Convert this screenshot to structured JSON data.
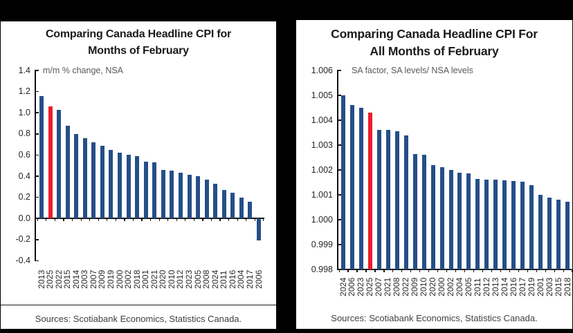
{
  "panels": {
    "left": {
      "title_line1": "Comparing Canada Headline CPI for",
      "title_line2": "Months of February",
      "axis_note": "m/m % change, NSA",
      "sources": "Sources: Scotiabank Economics, Statistics Canada."
    },
    "right": {
      "title_line1": "Comparing Canada Headline CPI For",
      "title_line2": "All Months of February",
      "axis_note": "SA factor, SA levels/ NSA levels",
      "sources": "Sources: Scotiabank Economics, Statistics Canada."
    }
  },
  "colors": {
    "bar_blue": "#254f87",
    "highlight_red": "#ec1c2d",
    "axis_black": "#111111",
    "background_black": "#000000",
    "panel_white": "#ffffff"
  },
  "chart_data": [
    {
      "type": "bar",
      "title": "Comparing Canada Headline CPI for Months of February",
      "note": "m/m % change, NSA",
      "xlabel": "",
      "ylabel": "m/m % change, NSA",
      "ylim": [
        -0.4,
        1.4
      ],
      "ytick_step": 0.2,
      "ytick_labels": [
        "1.4",
        "1.2",
        "1.0",
        "0.8",
        "0.6",
        "0.4",
        "0.2",
        "0.0",
        "-0.2",
        "-0.4"
      ],
      "baseline": 0,
      "grid": false,
      "legend": false,
      "highlight_index": 1,
      "highlight_category": "2025",
      "categories": [
        "2013",
        "2025",
        "2022",
        "2015",
        "2014",
        "2003",
        "2007",
        "2009",
        "2019",
        "2000",
        "2002",
        "2018",
        "2001",
        "2021",
        "2020",
        "2010",
        "2012",
        "2023",
        "2005",
        "2008",
        "2024",
        "2011",
        "2016",
        "2004",
        "2017",
        "2006"
      ],
      "values": [
        1.16,
        1.06,
        1.03,
        0.88,
        0.8,
        0.76,
        0.72,
        0.69,
        0.65,
        0.62,
        0.6,
        0.59,
        0.54,
        0.53,
        0.46,
        0.45,
        0.43,
        0.41,
        0.4,
        0.37,
        0.33,
        0.27,
        0.24,
        0.2,
        0.16,
        -0.21
      ]
    },
    {
      "type": "bar",
      "title": "Comparing Canada Headline CPI For All Months of February",
      "note": "SA factor, SA levels/ NSA levels",
      "xlabel": "",
      "ylabel": "SA factor, SA levels/ NSA levels",
      "ylim": [
        0.998,
        1.006
      ],
      "ytick_step": 0.001,
      "ytick_labels": [
        "1.006",
        "1.005",
        "1.004",
        "1.003",
        "1.002",
        "1.001",
        "1.000",
        "0.999",
        "0.998"
      ],
      "baseline": 0.998,
      "grid": false,
      "legend": false,
      "highlight_index": 3,
      "highlight_category": "2025",
      "categories": [
        "2024",
        "2006",
        "2023",
        "2025",
        "2007",
        "2021",
        "2008",
        "2022",
        "2009",
        "2010",
        "2020",
        "2000",
        "2002",
        "2004",
        "2005",
        "2011",
        "2012",
        "2013",
        "2014",
        "2016",
        "2017",
        "2019",
        "2001",
        "2003",
        "2015",
        "2018"
      ],
      "values": [
        1.005,
        1.0046,
        1.0045,
        1.0043,
        1.00362,
        1.0036,
        1.00355,
        1.0034,
        1.00265,
        1.0026,
        1.0022,
        1.0021,
        1.002,
        1.0019,
        1.00185,
        1.00165,
        1.00162,
        1.0016,
        1.00158,
        1.00155,
        1.00152,
        1.0014,
        1.001,
        1.0009,
        1.0008,
        1.00072
      ]
    }
  ]
}
